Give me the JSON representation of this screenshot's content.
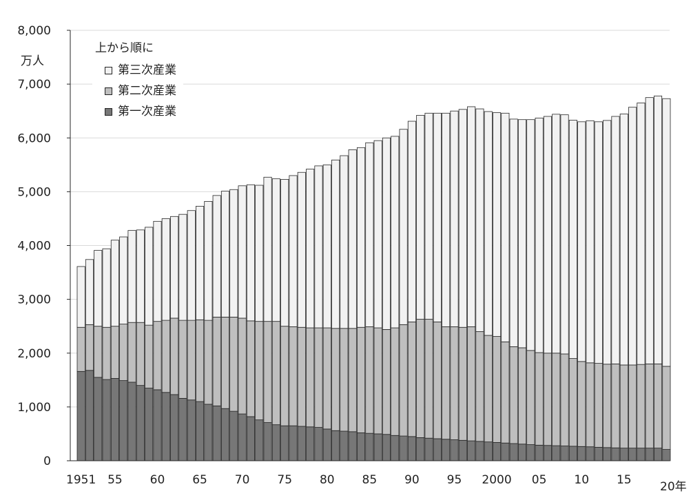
{
  "chart_data": {
    "type": "bar",
    "stacked": true,
    "ylabel": "万人",
    "xlabel": "年",
    "ylim": [
      0,
      8000
    ],
    "yticks": [
      0,
      1000,
      2000,
      3000,
      4000,
      5000,
      6000,
      7000,
      8000
    ],
    "ytick_labels": [
      "0",
      "1,000",
      "2,000",
      "3,000",
      "4,000",
      "5,000",
      "6,000",
      "7,000",
      "8,000"
    ],
    "grid": true,
    "legend_title": "上から順に",
    "legend_position": "top-left",
    "x": [
      1951,
      1952,
      1953,
      1954,
      1955,
      1956,
      1957,
      1958,
      1959,
      1960,
      1961,
      1962,
      1963,
      1964,
      1965,
      1966,
      1967,
      1968,
      1969,
      1970,
      1971,
      1972,
      1973,
      1974,
      1975,
      1976,
      1977,
      1978,
      1979,
      1980,
      1981,
      1982,
      1983,
      1984,
      1985,
      1986,
      1987,
      1988,
      1989,
      1990,
      1991,
      1992,
      1993,
      1994,
      1995,
      1996,
      1997,
      1998,
      1999,
      2000,
      2001,
      2002,
      2003,
      2004,
      2005,
      2006,
      2007,
      2008,
      2009,
      2010,
      2011,
      2012,
      2013,
      2014,
      2015,
      2016,
      2017,
      2018,
      2019,
      2020
    ],
    "xtick_labels": [
      {
        "year": 1951,
        "label": "1951"
      },
      {
        "year": 1955,
        "label": "55"
      },
      {
        "year": 1960,
        "label": "60"
      },
      {
        "year": 1965,
        "label": "65"
      },
      {
        "year": 1970,
        "label": "70"
      },
      {
        "year": 1975,
        "label": "75"
      },
      {
        "year": 1980,
        "label": "80"
      },
      {
        "year": 1985,
        "label": "85"
      },
      {
        "year": 1990,
        "label": "90"
      },
      {
        "year": 1995,
        "label": "95"
      },
      {
        "year": 2000,
        "label": "2000"
      },
      {
        "year": 2005,
        "label": "05"
      },
      {
        "year": 2010,
        "label": "10"
      },
      {
        "year": 2015,
        "label": "15"
      },
      {
        "year": 2020,
        "label": "20年"
      }
    ],
    "series": [
      {
        "name": "第一次産業",
        "color": "#777777",
        "values": [
          1660,
          1680,
          1550,
          1510,
          1530,
          1490,
          1460,
          1400,
          1350,
          1320,
          1270,
          1230,
          1160,
          1130,
          1100,
          1050,
          1020,
          970,
          920,
          870,
          820,
          760,
          710,
          670,
          650,
          650,
          640,
          630,
          620,
          590,
          560,
          550,
          540,
          520,
          510,
          500,
          490,
          470,
          460,
          450,
          430,
          420,
          410,
          400,
          390,
          380,
          370,
          360,
          350,
          340,
          330,
          320,
          310,
          300,
          290,
          285,
          280,
          275,
          270,
          265,
          260,
          250,
          245,
          240,
          235,
          235,
          235,
          235,
          235,
          210
        ]
      },
      {
        "name": "第二次産業",
        "color": "#bfbfbf",
        "values": [
          820,
          850,
          950,
          970,
          970,
          1050,
          1110,
          1170,
          1170,
          1270,
          1340,
          1420,
          1450,
          1480,
          1520,
          1560,
          1650,
          1700,
          1750,
          1780,
          1780,
          1830,
          1880,
          1920,
          1850,
          1840,
          1840,
          1840,
          1850,
          1880,
          1900,
          1910,
          1920,
          1960,
          1980,
          1970,
          1950,
          2000,
          2070,
          2130,
          2200,
          2210,
          2170,
          2090,
          2100,
          2100,
          2120,
          2040,
          1980,
          1970,
          1880,
          1800,
          1790,
          1750,
          1720,
          1715,
          1720,
          1710,
          1630,
          1580,
          1560,
          1560,
          1550,
          1560,
          1545,
          1545,
          1555,
          1565,
          1565,
          1545
        ]
      },
      {
        "name": "第三次産業",
        "color": "#f2f2f2",
        "values": [
          1130,
          1210,
          1410,
          1460,
          1600,
          1620,
          1710,
          1720,
          1820,
          1860,
          1890,
          1890,
          1970,
          2040,
          2110,
          2210,
          2260,
          2340,
          2370,
          2460,
          2530,
          2530,
          2680,
          2650,
          2730,
          2810,
          2880,
          2950,
          3010,
          3030,
          3130,
          3210,
          3320,
          3340,
          3420,
          3480,
          3560,
          3560,
          3630,
          3730,
          3790,
          3830,
          3880,
          3970,
          4010,
          4050,
          4090,
          4140,
          4160,
          4160,
          4250,
          4230,
          4240,
          4290,
          4360,
          4400,
          4440,
          4445,
          4430,
          4455,
          4500,
          4490,
          4530,
          4600,
          4665,
          4790,
          4860,
          4950,
          4980,
          4975
        ]
      }
    ]
  }
}
